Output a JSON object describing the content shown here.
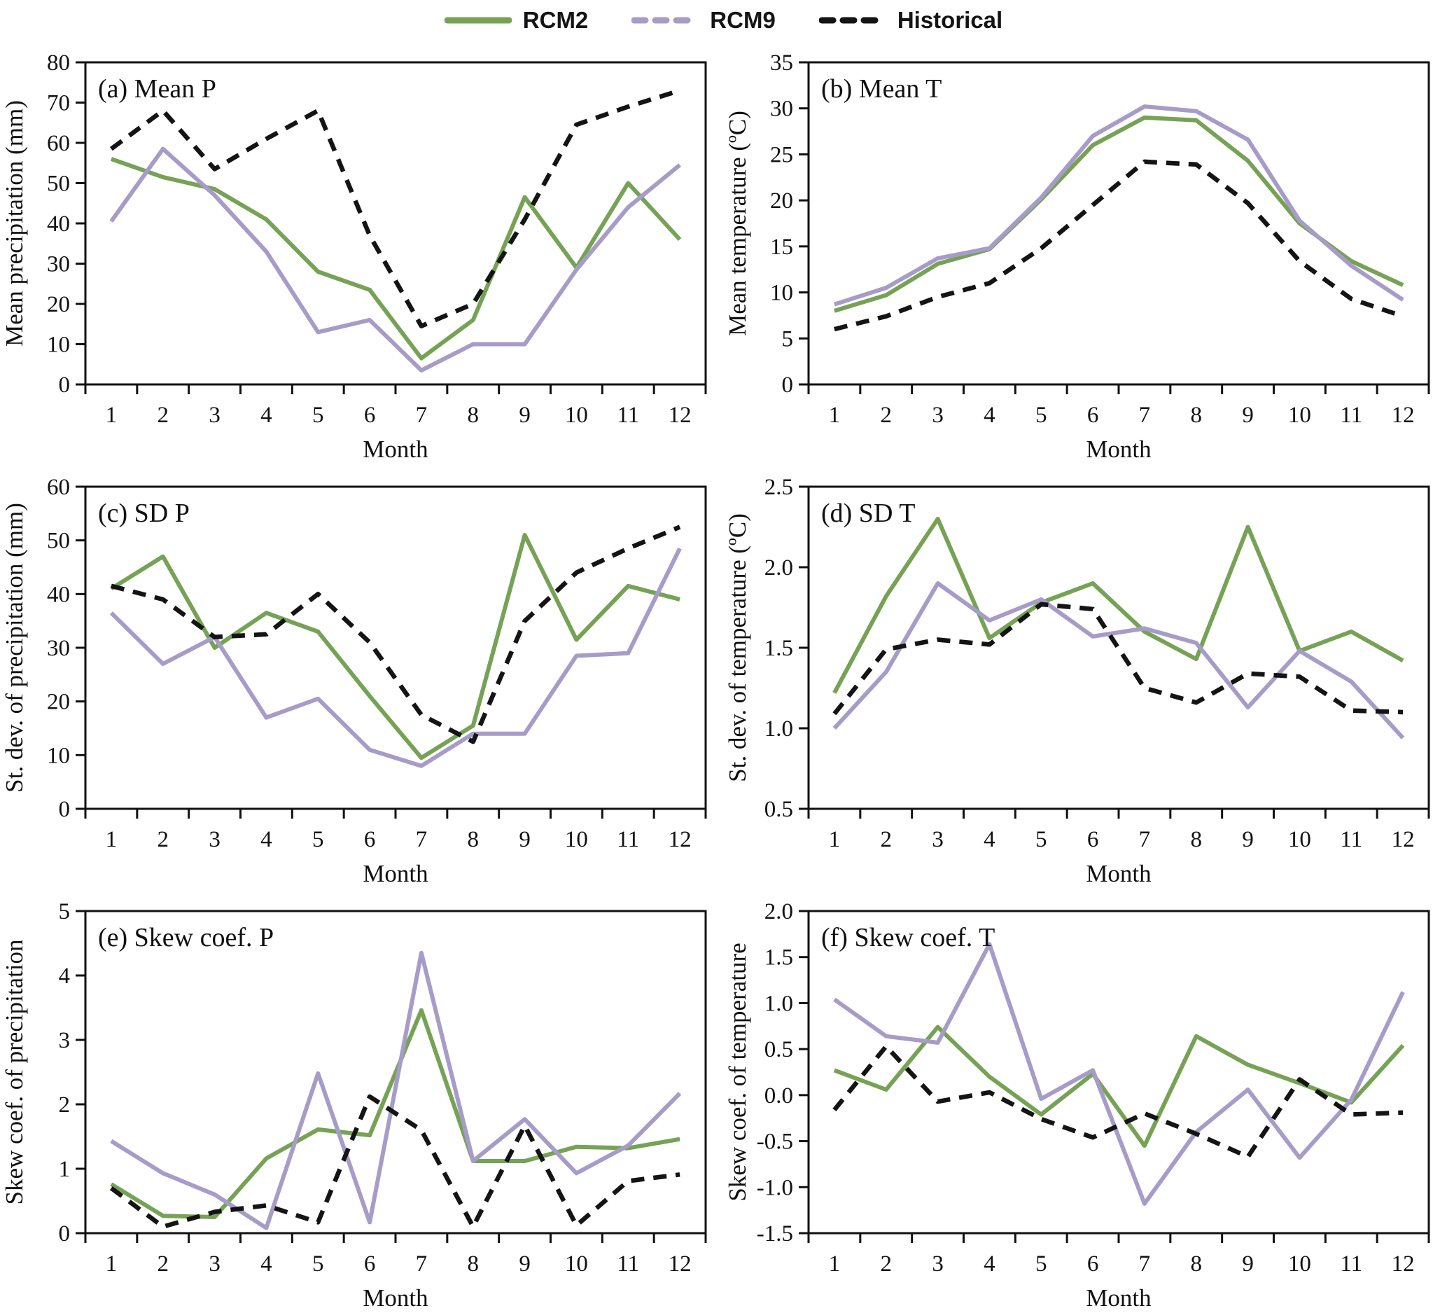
{
  "legend": {
    "items": [
      {
        "label": "RCM2",
        "color": "#76a255",
        "dash": null
      },
      {
        "label": "RCM9",
        "color": "#a79cc8",
        "dash": "16 14"
      },
      {
        "label": "Historical",
        "color": "#141414",
        "dash": "16 14"
      }
    ]
  },
  "chart_data": [
    {
      "type": "line",
      "title": "(a) Mean P",
      "xlabel": "Month",
      "ylabel": "Mean precipitation (mm)",
      "ylim": [
        0,
        80
      ],
      "ytick_step": 10,
      "ytick_decimals": 0,
      "grid": false,
      "legend_position": "top-center",
      "categories": [
        1,
        2,
        3,
        4,
        5,
        6,
        7,
        8,
        9,
        10,
        11,
        12
      ],
      "series": [
        {
          "name": "RCM2",
          "color": "#76a255",
          "dash": null,
          "values": [
            56,
            51.5,
            48.5,
            41,
            28,
            23.5,
            6.5,
            16,
            46.5,
            29,
            50,
            36
          ]
        },
        {
          "name": "RCM9",
          "color": "#a79cc8",
          "dash": null,
          "values": [
            40.5,
            58.5,
            47,
            33,
            13,
            16,
            3.5,
            10,
            10,
            28.5,
            44,
            54.5
          ]
        },
        {
          "name": "Historical",
          "color": "#141414",
          "dash": "19 13",
          "values": [
            58.5,
            68,
            53.5,
            61,
            68,
            37,
            14.5,
            20,
            41,
            64.5,
            69,
            73
          ]
        }
      ]
    },
    {
      "type": "line",
      "title": "(b) Mean T",
      "xlabel": "Month",
      "ylabel": "Mean temperature (ºC)",
      "ylim": [
        0,
        35
      ],
      "ytick_step": 5,
      "ytick_decimals": 0,
      "grid": false,
      "legend_position": "top-center",
      "categories": [
        1,
        2,
        3,
        4,
        5,
        6,
        7,
        8,
        9,
        10,
        11,
        12
      ],
      "series": [
        {
          "name": "RCM2",
          "color": "#76a255",
          "dash": null,
          "values": [
            8,
            9.7,
            13.1,
            14.7,
            20.1,
            26,
            29,
            28.7,
            24.3,
            17.5,
            13.4,
            10.8
          ]
        },
        {
          "name": "RCM9",
          "color": "#a79cc8",
          "dash": null,
          "values": [
            8.7,
            10.5,
            13.7,
            14.8,
            20.3,
            27,
            30.2,
            29.7,
            26.6,
            17.8,
            12.9,
            9.2
          ]
        },
        {
          "name": "Historical",
          "color": "#141414",
          "dash": "19 13",
          "values": [
            6,
            7.4,
            9.5,
            11,
            14.8,
            19.5,
            24.2,
            23.9,
            19.7,
            13.4,
            9.3,
            7.4
          ]
        }
      ]
    },
    {
      "type": "line",
      "title": "(c) SD P",
      "xlabel": "Month",
      "ylabel": "St. dev. of precipitation (mm)",
      "ylim": [
        0,
        60
      ],
      "ytick_step": 10,
      "ytick_decimals": 0,
      "grid": false,
      "legend_position": "top-center",
      "categories": [
        1,
        2,
        3,
        4,
        5,
        6,
        7,
        8,
        9,
        10,
        11,
        12
      ],
      "series": [
        {
          "name": "RCM2",
          "color": "#76a255",
          "dash": null,
          "values": [
            41,
            47,
            30,
            36.5,
            33,
            21,
            9.5,
            15.5,
            51,
            31.5,
            41.5,
            39
          ]
        },
        {
          "name": "RCM9",
          "color": "#a79cc8",
          "dash": null,
          "values": [
            36.5,
            27,
            32,
            17,
            20.5,
            11,
            8,
            14,
            14,
            28.5,
            29,
            48.5
          ]
        },
        {
          "name": "Historical",
          "color": "#141414",
          "dash": "19 13",
          "values": [
            41.5,
            39,
            32,
            32.5,
            40,
            31,
            17.5,
            12.5,
            35,
            44,
            48.5,
            52.5
          ]
        }
      ]
    },
    {
      "type": "line",
      "title": "(d) SD T",
      "xlabel": "Month",
      "ylabel": "St. dev. of temperature (ºC)",
      "ylim": [
        0.5,
        2.5
      ],
      "ytick_step": 0.5,
      "ytick_decimals": 1,
      "grid": false,
      "legend_position": "top-center",
      "categories": [
        1,
        2,
        3,
        4,
        5,
        6,
        7,
        8,
        9,
        10,
        11,
        12
      ],
      "series": [
        {
          "name": "RCM2",
          "color": "#76a255",
          "dash": null,
          "values": [
            1.22,
            1.82,
            2.3,
            1.56,
            1.78,
            1.9,
            1.6,
            1.43,
            2.25,
            1.48,
            1.6,
            1.42
          ]
        },
        {
          "name": "RCM9",
          "color": "#a79cc8",
          "dash": null,
          "values": [
            1.0,
            1.35,
            1.9,
            1.67,
            1.8,
            1.57,
            1.62,
            1.53,
            1.13,
            1.48,
            1.29,
            0.94
          ]
        },
        {
          "name": "Historical",
          "color": "#141414",
          "dash": "19 13",
          "values": [
            1.09,
            1.49,
            1.55,
            1.52,
            1.77,
            1.74,
            1.25,
            1.16,
            1.34,
            1.32,
            1.11,
            1.1
          ]
        }
      ]
    },
    {
      "type": "line",
      "title": "(e) Skew coef. P",
      "xlabel": "Month",
      "ylabel": "Skew coef. of precipitation",
      "ylim": [
        0,
        5
      ],
      "ytick_step": 1,
      "ytick_decimals": 0,
      "grid": false,
      "legend_position": "top-center",
      "categories": [
        1,
        2,
        3,
        4,
        5,
        6,
        7,
        8,
        9,
        10,
        11,
        12
      ],
      "series": [
        {
          "name": "RCM2",
          "color": "#76a255",
          "dash": null,
          "values": [
            0.76,
            0.27,
            0.25,
            1.16,
            1.61,
            1.52,
            3.46,
            1.12,
            1.12,
            1.34,
            1.32,
            1.46
          ]
        },
        {
          "name": "RCM9",
          "color": "#a79cc8",
          "dash": null,
          "values": [
            1.43,
            0.93,
            0.6,
            0.08,
            2.48,
            0.17,
            4.35,
            1.12,
            1.77,
            0.93,
            1.36,
            2.17
          ]
        },
        {
          "name": "Historical",
          "color": "#141414",
          "dash": "19 13",
          "values": [
            0.7,
            0.1,
            0.33,
            0.43,
            0.17,
            2.12,
            1.6,
            0.1,
            1.67,
            0.12,
            0.81,
            0.91
          ]
        }
      ]
    },
    {
      "type": "line",
      "title": "(f) Skew coef. T",
      "xlabel": "Month",
      "ylabel": "Skew coef. of temperature",
      "ylim": [
        -1.5,
        2.0
      ],
      "ytick_step": 0.5,
      "ytick_decimals": 1,
      "grid": false,
      "legend_position": "top-center",
      "categories": [
        1,
        2,
        3,
        4,
        5,
        6,
        7,
        8,
        9,
        10,
        11,
        12
      ],
      "series": [
        {
          "name": "RCM2",
          "color": "#76a255",
          "dash": null,
          "values": [
            0.27,
            0.06,
            0.74,
            0.2,
            -0.21,
            0.23,
            -0.55,
            0.64,
            0.33,
            0.13,
            -0.08,
            0.54
          ]
        },
        {
          "name": "RCM9",
          "color": "#a79cc8",
          "dash": null,
          "values": [
            1.04,
            0.64,
            0.57,
            1.64,
            -0.04,
            0.27,
            -1.18,
            -0.4,
            0.06,
            -0.68,
            -0.05,
            1.12
          ]
        },
        {
          "name": "Historical",
          "color": "#141414",
          "dash": "19 13",
          "values": [
            -0.16,
            0.53,
            -0.07,
            0.03,
            -0.26,
            -0.46,
            -0.2,
            -0.42,
            -0.67,
            0.17,
            -0.21,
            -0.19
          ]
        }
      ]
    }
  ]
}
